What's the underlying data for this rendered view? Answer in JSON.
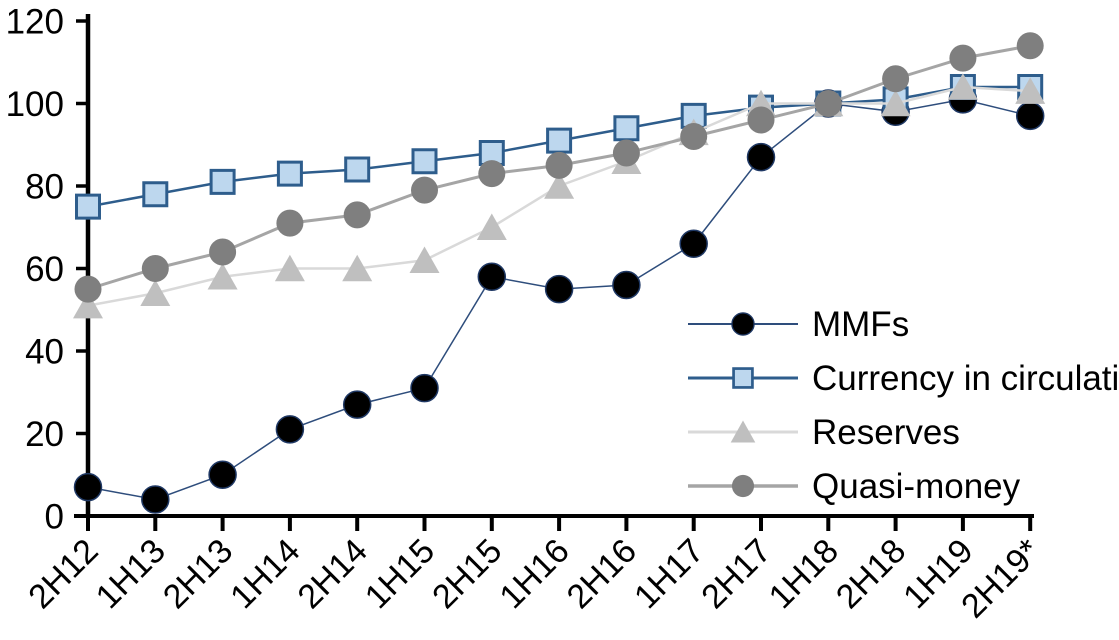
{
  "chart_data": {
    "type": "line",
    "title": "",
    "xlabel": "",
    "ylabel": "",
    "ylim": [
      0,
      120
    ],
    "ytick_step": 20,
    "yticks": [
      0,
      20,
      40,
      60,
      80,
      100,
      120
    ],
    "grid": false,
    "legend_position": "inside-right",
    "x_label_rotation_deg": -45,
    "categories": [
      "2H12",
      "1H13",
      "2H13",
      "1H14",
      "2H14",
      "1H15",
      "2H15",
      "1H16",
      "2H16",
      "1H17",
      "2H17",
      "1H18",
      "2H18",
      "1H19",
      "2H19*"
    ],
    "series": [
      {
        "name": "MMFs",
        "marker": "circle",
        "marker_fill": "#000000",
        "marker_stroke": "#1F3864",
        "marker_stroke_width": 1.5,
        "marker_size": 27,
        "line_color": "#2E4D7C",
        "line_width": 1.5,
        "values": [
          7,
          4,
          10,
          21,
          27,
          31,
          58,
          55,
          56,
          66,
          87,
          100,
          98,
          101,
          97
        ]
      },
      {
        "name": "Currency in circulation",
        "marker": "square",
        "marker_fill": "#BDD7EE",
        "marker_stroke": "#2E5D8C",
        "marker_stroke_width": 3,
        "marker_size": 23,
        "line_color": "#2E5D8C",
        "line_width": 2.5,
        "values": [
          75,
          78,
          81,
          83,
          84,
          86,
          88,
          91,
          94,
          97,
          99,
          100,
          101,
          104,
          104
        ]
      },
      {
        "name": "Reserves",
        "marker": "triangle",
        "marker_fill": "#BFBFBF",
        "marker_stroke": "none",
        "marker_stroke_width": 0,
        "marker_size": 30,
        "line_color": "#D9D9D9",
        "line_width": 2.5,
        "values": [
          51,
          54,
          58,
          60,
          60,
          62,
          70,
          80,
          86,
          93,
          100,
          100,
          100,
          104,
          103
        ]
      },
      {
        "name": "Quasi-money",
        "marker": "circle",
        "marker_fill": "#7F7F7F",
        "marker_stroke": "none",
        "marker_stroke_width": 0,
        "marker_size": 27,
        "line_color": "#A5A5A5",
        "line_width": 3,
        "values": [
          55,
          60,
          64,
          71,
          73,
          79,
          83,
          85,
          88,
          92,
          96,
          100,
          106,
          111,
          114
        ]
      }
    ],
    "axis_color": "#000000",
    "text_color": "#000000"
  }
}
